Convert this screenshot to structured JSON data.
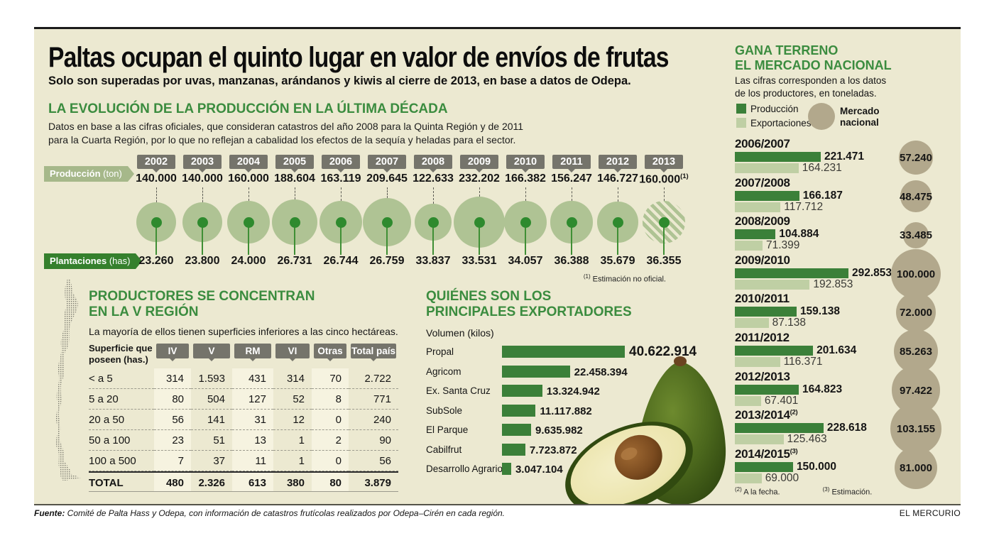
{
  "header": {
    "title": "Paltas ocupan el quinto lugar en valor de envíos de frutas",
    "subtitle": "Solo son superadas por uvas, manzanas, arándanos y kiwis al cierre de 2013, en base a datos de Odepa."
  },
  "colors": {
    "background": "#ECE9D1",
    "accent_green": "#3B8C3F",
    "bar_dark_green": "#3B8039",
    "bar_light_green": "#BFCFA4",
    "tag_sage": "#A6B88A",
    "tag_dark_green": "#35802D",
    "bubble_green": "#AFC394",
    "market_tan": "#B2A88C",
    "badge_gray": "#75746B"
  },
  "evolution": {
    "heading": "LA EVOLUCIÓN DE LA PRODUCCIÓN EN LA ÚLTIMA DÉCADA",
    "note": "Datos en base a las cifras oficiales, que consideran catastros del año 2008 para la Quinta Región y de 2011\npara la Cuarta Región, por lo que no reflejan a cabalidad los efectos de la sequía y heladas para el sector.",
    "production_tag_bold": "Producción",
    "production_tag_unit": " (ton)",
    "plantation_tag_bold": "Plantaciones",
    "plantation_tag_unit": " (has)",
    "footnote_sup": "(1)",
    "footnote_text": " Estimación no oficial.",
    "years": [
      {
        "year": "2002",
        "production": "140.000",
        "production_num": 140000,
        "plantation": "23.260"
      },
      {
        "year": "2003",
        "production": "140.000",
        "production_num": 140000,
        "plantation": "23.800"
      },
      {
        "year": "2004",
        "production": "160.000",
        "production_num": 160000,
        "plantation": "24.000"
      },
      {
        "year": "2005",
        "production": "188.604",
        "production_num": 188604,
        "plantation": "26.731"
      },
      {
        "year": "2006",
        "production": "163.119",
        "production_num": 163119,
        "plantation": "26.744"
      },
      {
        "year": "2007",
        "production": "209.645",
        "production_num": 209645,
        "plantation": "26.759"
      },
      {
        "year": "2008",
        "production": "122.633",
        "production_num": 122633,
        "plantation": "33.837"
      },
      {
        "year": "2009",
        "production": "232.202",
        "production_num": 232202,
        "plantation": "33.531"
      },
      {
        "year": "2010",
        "production": "166.382",
        "production_num": 166382,
        "plantation": "34.057"
      },
      {
        "year": "2011",
        "production": "156.247",
        "production_num": 156247,
        "plantation": "36.388"
      },
      {
        "year": "2012",
        "production": "146.727",
        "production_num": 146727,
        "plantation": "35.679"
      },
      {
        "year": "2013",
        "production": "160.000",
        "production_num": 160000,
        "sup": "(1)",
        "plantation": "36.355",
        "hatched": true
      }
    ]
  },
  "producers": {
    "heading": "PRODUCTORES SE CONCENTRAN\nEN LA V REGIÓN",
    "subtext": "La mayoría de ellos tienen superficies inferiores a las cinco hectáreas.",
    "table": {
      "corner": "Superficie que\nposeen (has.)",
      "columns": [
        "IV",
        "V",
        "RM",
        "VI",
        "Otras",
        "Total país"
      ],
      "rows": [
        {
          "label": "< a 5",
          "values": [
            "314",
            "1.593",
            "431",
            "314",
            "70",
            "2.722"
          ]
        },
        {
          "label": "5 a 20",
          "values": [
            "80",
            "504",
            "127",
            "52",
            "8",
            "771"
          ]
        },
        {
          "label": "20 a 50",
          "values": [
            "56",
            "141",
            "31",
            "12",
            "0",
            "240"
          ]
        },
        {
          "label": "50 a 100",
          "values": [
            "23",
            "51",
            "13",
            "1",
            "2",
            "90"
          ]
        },
        {
          "label": "100 a 500",
          "values": [
            "7",
            "37",
            "11",
            "1",
            "0",
            "56"
          ]
        }
      ],
      "total": {
        "label": "TOTAL",
        "values": [
          "480",
          "2.326",
          "613",
          "380",
          "80",
          "3.879"
        ]
      }
    }
  },
  "exporters": {
    "heading": "QUIÉNES SON LOS\nPRINCIPALES EXPORTADORES",
    "unit": "Volumen (kilos)",
    "bars": [
      {
        "name": "Propal",
        "value": "40.622.914",
        "value_num": 40622914
      },
      {
        "name": "Agricom",
        "value": "22.458.394",
        "value_num": 22458394
      },
      {
        "name": "Ex. Santa Cruz",
        "value": "13.324.942",
        "value_num": 13324942
      },
      {
        "name": "SubSole",
        "value": "11.117.882",
        "value_num": 11117882
      },
      {
        "name": "El Parque",
        "value": "9.635.982",
        "value_num": 9635982
      },
      {
        "name": "Cabilfrut",
        "value": "7.723.872",
        "value_num": 7723872
      },
      {
        "name": "Desarrollo Agrario",
        "value": "3.047.104",
        "value_num": 3047104
      }
    ]
  },
  "national": {
    "heading": "GANA TERRENO\nEL MERCADO NACIONAL",
    "subtext": "Las cifras corresponden a los datos\nde los productores, en toneladas.",
    "legend": {
      "production": "Producción",
      "exports": "Exportaciones",
      "market": "Mercado\nnacional"
    },
    "seasons": [
      {
        "label": "2006/2007",
        "production": "221.471",
        "production_num": 221471,
        "exports": "164.231",
        "exports_num": 164231,
        "market": "57.240",
        "market_num": 57240
      },
      {
        "label": "2007/2008",
        "production": "166.187",
        "production_num": 166187,
        "exports": "117.712",
        "exports_num": 117712,
        "market": "48.475",
        "market_num": 48475
      },
      {
        "label": "2008/2009",
        "production": "104.884",
        "production_num": 104884,
        "exports": "71.399",
        "exports_num": 71399,
        "market": "33.485",
        "market_num": 33485
      },
      {
        "label": "2009/2010",
        "production": "292.853",
        "production_num": 292853,
        "exports": "192.853",
        "exports_num": 192853,
        "market": "100.000",
        "market_num": 100000
      },
      {
        "label": "2010/2011",
        "production": "159.138",
        "production_num": 159138,
        "exports": "87.138",
        "exports_num": 87138,
        "market": "72.000",
        "market_num": 72000
      },
      {
        "label": "2011/2012",
        "production": "201.634",
        "production_num": 201634,
        "exports": "116.371",
        "exports_num": 116371,
        "market": "85.263",
        "market_num": 85263
      },
      {
        "label": "2012/2013",
        "production": "164.823",
        "production_num": 164823,
        "exports": "67.401",
        "exports_num": 67401,
        "market": "97.422",
        "market_num": 97422
      },
      {
        "label": "2013/2014",
        "sup": "(2)",
        "production": "228.618",
        "production_num": 228618,
        "exports": "125.463",
        "exports_num": 125463,
        "market": "103.155",
        "market_num": 103155
      },
      {
        "label": "2014/2015",
        "sup": "(3)",
        "production": "150.000",
        "production_num": 150000,
        "exports": "69.000",
        "exports_num": 69000,
        "market": "81.000",
        "market_num": 81000
      }
    ],
    "footnote2_sup": "(2)",
    "footnote2_text": " A la fecha.",
    "footnote3_sup": "(3)",
    "footnote3_text": " Estimación."
  },
  "footer": {
    "source_bold": "Fuente:",
    "source_rest": " Comité de Palta Hass y Odepa, con información de catastros frutícolas realizados por Odepa–Cirén en cada región.",
    "credit": "EL MERCURIO"
  },
  "chart_data": [
    {
      "type": "scatter",
      "title": "LA EVOLUCIÓN DE LA PRODUCCIÓN EN LA ÚLTIMA DÉCADA",
      "x": [
        2002,
        2003,
        2004,
        2005,
        2006,
        2007,
        2008,
        2009,
        2010,
        2011,
        2012,
        2013
      ],
      "series": [
        {
          "name": "Producción (ton)",
          "values": [
            140000,
            140000,
            160000,
            188604,
            163119,
            209645,
            122633,
            232202,
            166382,
            156247,
            146727,
            160000
          ]
        },
        {
          "name": "Plantaciones (has)",
          "values": [
            23260,
            23800,
            24000,
            26731,
            26744,
            26759,
            33837,
            33531,
            34057,
            36388,
            35679,
            36355
          ]
        }
      ],
      "annotations": [
        "(1) Estimación no oficial para 2013 (burbuja achurada)"
      ],
      "legend_position": "left"
    },
    {
      "type": "table",
      "title": "PRODUCTORES SE CONCENTRAN EN LA V REGIÓN",
      "columns": [
        "Superficie que poseen (has.)",
        "IV",
        "V",
        "RM",
        "VI",
        "Otras",
        "Total país"
      ],
      "rows": [
        [
          "< a 5",
          314,
          1593,
          431,
          314,
          70,
          2722
        ],
        [
          "5 a 20",
          80,
          504,
          127,
          52,
          8,
          771
        ],
        [
          "20 a 50",
          56,
          141,
          31,
          12,
          0,
          240
        ],
        [
          "50 a 100",
          23,
          51,
          13,
          1,
          2,
          90
        ],
        [
          "100 a 500",
          7,
          37,
          11,
          1,
          0,
          56
        ],
        [
          "TOTAL",
          480,
          2326,
          613,
          380,
          80,
          3879
        ]
      ]
    },
    {
      "type": "bar",
      "title": "QUIÉNES SON LOS PRINCIPALES EXPORTADORES",
      "xlabel": "Volumen (kilos)",
      "categories": [
        "Propal",
        "Agricom",
        "Ex. Santa Cruz",
        "SubSole",
        "El Parque",
        "Cabilfrut",
        "Desarrollo Agrario"
      ],
      "values": [
        40622914,
        22458394,
        13324942,
        11117882,
        9635982,
        7723872,
        3047104
      ]
    },
    {
      "type": "bar",
      "title": "GANA TERRENO EL MERCADO NACIONAL (toneladas)",
      "categories": [
        "2006/2007",
        "2007/2008",
        "2008/2009",
        "2009/2010",
        "2010/2011",
        "2011/2012",
        "2012/2013",
        "2013/2014",
        "2014/2015"
      ],
      "series": [
        {
          "name": "Producción",
          "values": [
            221471,
            166187,
            104884,
            292853,
            159138,
            201634,
            164823,
            228618,
            150000
          ]
        },
        {
          "name": "Exportaciones",
          "values": [
            164231,
            117712,
            71399,
            192853,
            87138,
            116371,
            67401,
            125463,
            69000
          ]
        },
        {
          "name": "Mercado nacional",
          "values": [
            57240,
            48475,
            33485,
            100000,
            72000,
            85263,
            97422,
            103155,
            81000
          ]
        }
      ]
    }
  ]
}
